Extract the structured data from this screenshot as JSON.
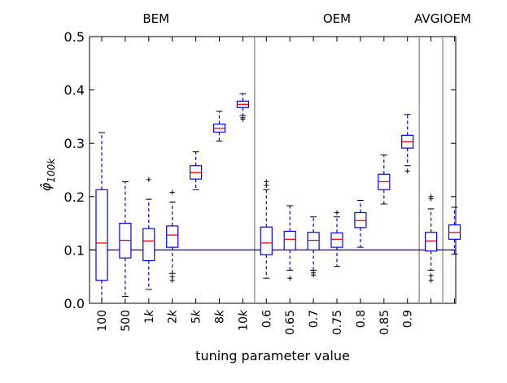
{
  "chart_data": {
    "type": "boxplot",
    "title": "",
    "xlabel": "tuning parameter value",
    "ylabel_base": "φ̂",
    "ylabel_sub": "100k",
    "ylim": [
      0.0,
      0.5
    ],
    "yticks": [
      0.0,
      0.1,
      0.2,
      0.3,
      0.4,
      0.5
    ],
    "ytick_labels": [
      "0.0",
      "0.1",
      "0.2",
      "0.3",
      "0.4",
      "0.5"
    ],
    "reference_line": 0.1,
    "groups": [
      {
        "label": "BEM",
        "first": 0,
        "last": 6
      },
      {
        "label": "OEM",
        "first": 7,
        "last": 13
      },
      {
        "label": "AVGIOEM",
        "first": 14,
        "last": 15
      }
    ],
    "separators_after": [
      6,
      13,
      14
    ],
    "colors": {
      "box": "#0000ff",
      "median": "#ff0000",
      "reference": "#0000ff",
      "separator": "#999999",
      "flier": "#000000"
    },
    "boxes": [
      {
        "label": "100",
        "italic_k": false,
        "whislo": 0.0,
        "q1": 0.043,
        "med": 0.113,
        "q3": 0.213,
        "whishi": 0.32,
        "fliers": []
      },
      {
        "label": "500",
        "italic_k": false,
        "whislo": 0.013,
        "q1": 0.085,
        "med": 0.118,
        "q3": 0.15,
        "whishi": 0.228,
        "fliers": []
      },
      {
        "label": "1",
        "italic_k": true,
        "whislo": 0.026,
        "q1": 0.08,
        "med": 0.117,
        "q3": 0.14,
        "whishi": 0.195,
        "fliers": [
          0.232
        ]
      },
      {
        "label": "2",
        "italic_k": true,
        "whislo": 0.056,
        "q1": 0.105,
        "med": 0.128,
        "q3": 0.145,
        "whishi": 0.19,
        "fliers": [
          0.043,
          0.05,
          0.208
        ]
      },
      {
        "label": "5",
        "italic_k": true,
        "whislo": 0.213,
        "q1": 0.233,
        "med": 0.245,
        "q3": 0.258,
        "whishi": 0.284,
        "fliers": []
      },
      {
        "label": "8",
        "italic_k": true,
        "whislo": 0.304,
        "q1": 0.321,
        "med": 0.328,
        "q3": 0.336,
        "whishi": 0.36,
        "fliers": []
      },
      {
        "label": "10",
        "italic_k": true,
        "whislo": 0.352,
        "q1": 0.367,
        "med": 0.373,
        "q3": 0.379,
        "whishi": 0.393,
        "fliers": [
          0.345,
          0.348
        ]
      },
      {
        "label": "0.6",
        "italic_k": false,
        "whislo": 0.047,
        "q1": 0.091,
        "med": 0.113,
        "q3": 0.143,
        "whishi": 0.213,
        "fliers": [
          0.221,
          0.228
        ]
      },
      {
        "label": "0.65",
        "italic_k": false,
        "whislo": 0.062,
        "q1": 0.1,
        "med": 0.12,
        "q3": 0.135,
        "whishi": 0.183,
        "fliers": [
          0.047
        ]
      },
      {
        "label": "0.7",
        "italic_k": false,
        "whislo": 0.062,
        "q1": 0.1,
        "med": 0.118,
        "q3": 0.133,
        "whishi": 0.162,
        "fliers": [
          0.053,
          0.057
        ]
      },
      {
        "label": "0.75",
        "italic_k": false,
        "whislo": 0.069,
        "q1": 0.105,
        "med": 0.12,
        "q3": 0.132,
        "whishi": 0.162,
        "fliers": [
          0.17
        ]
      },
      {
        "label": "0.8",
        "italic_k": false,
        "whislo": 0.105,
        "q1": 0.142,
        "med": 0.155,
        "q3": 0.17,
        "whishi": 0.193,
        "fliers": []
      },
      {
        "label": "0.85",
        "italic_k": false,
        "whislo": 0.186,
        "q1": 0.213,
        "med": 0.228,
        "q3": 0.242,
        "whishi": 0.278,
        "fliers": []
      },
      {
        "label": "0.9",
        "italic_k": false,
        "whislo": 0.258,
        "q1": 0.291,
        "med": 0.303,
        "q3": 0.315,
        "whishi": 0.354,
        "fliers": [
          0.248
        ]
      },
      {
        "label": "",
        "italic_k": false,
        "whislo": 0.062,
        "q1": 0.098,
        "med": 0.117,
        "q3": 0.133,
        "whishi": 0.177,
        "fliers": [
          0.043,
          0.052,
          0.196,
          0.2
        ]
      },
      {
        "label": "",
        "italic_k": false,
        "whislo": 0.092,
        "q1": 0.12,
        "med": 0.133,
        "q3": 0.147,
        "whishi": 0.18,
        "fliers": []
      }
    ]
  }
}
